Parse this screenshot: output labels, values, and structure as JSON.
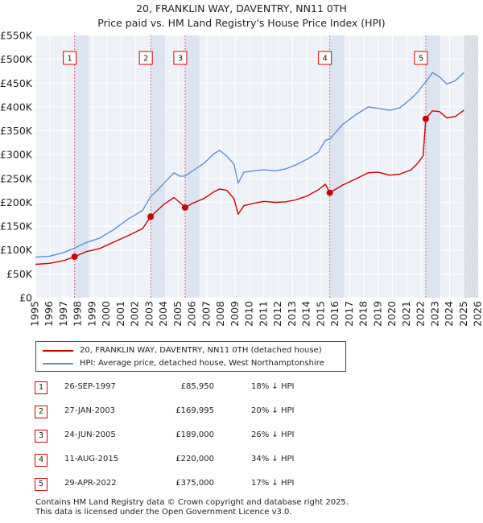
{
  "title_line1": "20, FRANKLIN WAY, DAVENTRY, NN11 0TH",
  "title_line2": "Price paid vs. HM Land Registry's House Price Index (HPI)",
  "chart_data": {
    "type": "line",
    "title": "20, FRANKLIN WAY, DAVENTRY, NN11 0TH — Price paid vs. HM Land Registry's House Price Index (HPI)",
    "xlabel": "",
    "ylabel": "",
    "xlim": [
      1995,
      2026
    ],
    "ylim": [
      0,
      550000
    ],
    "y_ticks": [
      0,
      50000,
      100000,
      150000,
      200000,
      250000,
      300000,
      350000,
      400000,
      450000,
      500000,
      550000
    ],
    "y_tick_labels": [
      "£0",
      "£50K",
      "£100K",
      "£150K",
      "£200K",
      "£250K",
      "£300K",
      "£350K",
      "£400K",
      "£450K",
      "£500K",
      "£550K"
    ],
    "x_ticks": [
      1995,
      1996,
      1997,
      1998,
      1999,
      2000,
      2001,
      2002,
      2003,
      2004,
      2005,
      2006,
      2007,
      2008,
      2009,
      2010,
      2011,
      2012,
      2013,
      2014,
      2015,
      2016,
      2017,
      2018,
      2019,
      2020,
      2021,
      2022,
      2023,
      2024,
      2025,
      2026
    ],
    "grid": true,
    "series": [
      {
        "name": "20, FRANKLIN WAY, DAVENTRY, NN11 0TH (detached house)",
        "color": "#cc0000",
        "x": [
          1995.0,
          1996.0,
          1997.0,
          1997.74,
          1998.5,
          1999.5,
          2000.5,
          2001.5,
          2002.5,
          2003.07,
          2003.5,
          2004.0,
          2004.7,
          2005.1,
          2005.48,
          2006.0,
          2006.8,
          2007.5,
          2007.9,
          2008.4,
          2008.9,
          2009.2,
          2009.6,
          2010.3,
          2011.0,
          2011.8,
          2012.5,
          2013.2,
          2014.0,
          2014.8,
          2015.3,
          2015.61,
          2016.5,
          2017.5,
          2018.3,
          2019.0,
          2019.8,
          2020.5,
          2021.3,
          2021.8,
          2022.15,
          2022.33,
          2022.8,
          2023.3,
          2023.8,
          2024.4,
          2025.0
        ],
        "y": [
          70000,
          72000,
          78000,
          85950,
          96000,
          103000,
          117000,
          130000,
          145000,
          169995,
          182000,
          196000,
          210000,
          200000,
          189000,
          198000,
          208000,
          222000,
          228000,
          225000,
          208000,
          175000,
          193000,
          198000,
          202000,
          200000,
          201000,
          205000,
          213000,
          226000,
          238000,
          220000,
          236000,
          250000,
          262000,
          263000,
          257000,
          259000,
          268000,
          283000,
          298000,
          375000,
          392000,
          390000,
          377000,
          380000,
          393000
        ]
      },
      {
        "name": "HPI: Average price, detached house, West Northamptonshire",
        "color": "#5b8fd0",
        "x": [
          1995.0,
          1996.0,
          1997.0,
          1997.74,
          1998.5,
          1999.5,
          2000.5,
          2001.5,
          2002.5,
          2003.07,
          2003.5,
          2004.0,
          2004.7,
          2005.1,
          2005.48,
          2006.0,
          2006.8,
          2007.5,
          2007.9,
          2008.4,
          2008.9,
          2009.2,
          2009.6,
          2010.3,
          2011.0,
          2011.8,
          2012.5,
          2013.2,
          2014.0,
          2014.8,
          2015.3,
          2015.61,
          2016.5,
          2017.5,
          2018.3,
          2019.0,
          2019.8,
          2020.5,
          2021.3,
          2021.8,
          2022.15,
          2022.33,
          2022.8,
          2023.3,
          2023.8,
          2024.4,
          2025.0
        ],
        "y": [
          85000,
          87000,
          95000,
          104000,
          115000,
          125000,
          143000,
          165000,
          183000,
          212000,
          224000,
          240000,
          262000,
          255000,
          255000,
          266000,
          282000,
          302000,
          309000,
          297000,
          280000,
          240000,
          263000,
          266000,
          268000,
          266000,
          270000,
          278000,
          290000,
          305000,
          330000,
          333000,
          363000,
          385000,
          400000,
          397000,
          393000,
          398000,
          417000,
          432000,
          447000,
          452000,
          472000,
          463000,
          448000,
          455000,
          472000
        ]
      }
    ],
    "sales": [
      {
        "num": "1",
        "x": 1997.74,
        "price": 85950
      },
      {
        "num": "2",
        "x": 2003.07,
        "price": 169995
      },
      {
        "num": "3",
        "x": 2005.48,
        "price": 189000
      },
      {
        "num": "4",
        "x": 2015.61,
        "price": 220000
      },
      {
        "num": "5",
        "x": 2022.33,
        "price": 375000
      }
    ]
  },
  "legend": {
    "property_label": "20, FRANKLIN WAY, DAVENTRY, NN11 0TH (detached house)",
    "hpi_label": "HPI: Average price, detached house, West Northamptonshire"
  },
  "transactions": [
    {
      "num": "1",
      "date": "26-SEP-1997",
      "price": "£85,950",
      "hpi": "18% ↓ HPI"
    },
    {
      "num": "2",
      "date": "27-JAN-2003",
      "price": "£169,995",
      "hpi": "20% ↓ HPI"
    },
    {
      "num": "3",
      "date": "24-JUN-2005",
      "price": "£189,000",
      "hpi": "26% ↓ HPI"
    },
    {
      "num": "4",
      "date": "11-AUG-2015",
      "price": "£220,000",
      "hpi": "34% ↓ HPI"
    },
    {
      "num": "5",
      "date": "29-APR-2022",
      "price": "£375,000",
      "hpi": "17% ↓ HPI"
    }
  ],
  "footer": {
    "line1": "Contains HM Land Registry data © Crown copyright and database right 2025.",
    "line2": "This data is licensed under the Open Government Licence v3.0."
  },
  "colors": {
    "property": "#cc0000",
    "hpi": "#5b8fd0",
    "plot_bg": "#eef2f8",
    "highlight_band": "#dce4f2",
    "grid": "#ffffff",
    "marker_line": "#dd6677"
  }
}
